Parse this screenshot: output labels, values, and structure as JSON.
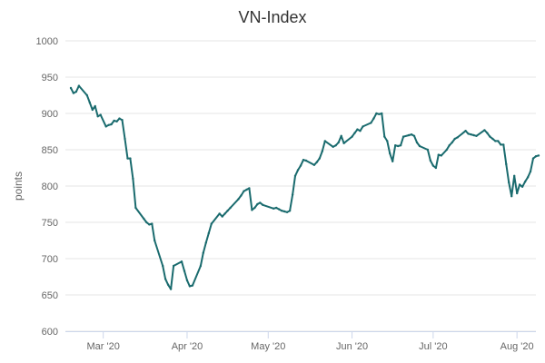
{
  "chart_data": {
    "type": "line",
    "title": "VN-Index",
    "xlabel": "",
    "ylabel": "points",
    "ylim": [
      600,
      1000
    ],
    "yticks": [
      600,
      650,
      700,
      750,
      800,
      850,
      900,
      950,
      1000
    ],
    "xticks": [
      {
        "date": "2020-03-01",
        "label": "Mar '20"
      },
      {
        "date": "2020-04-01",
        "label": "Apr '20"
      },
      {
        "date": "2020-05-01",
        "label": "May '20"
      },
      {
        "date": "2020-06-01",
        "label": "Jun '20"
      },
      {
        "date": "2020-07-01",
        "label": "Jul '20"
      },
      {
        "date": "2020-08-01",
        "label": "Aug '20"
      }
    ],
    "xlim": [
      "2020-02-16",
      "2020-08-08"
    ],
    "grid": true,
    "line_color": "#1a6b6e",
    "series": [
      {
        "name": "",
        "points": [
          [
            "2020-02-18",
            935
          ],
          [
            "2020-02-19",
            928
          ],
          [
            "2020-02-20",
            930
          ],
          [
            "2020-02-21",
            938
          ],
          [
            "2020-02-24",
            925
          ],
          [
            "2020-02-25",
            915
          ],
          [
            "2020-02-26",
            905
          ],
          [
            "2020-02-27",
            910
          ],
          [
            "2020-02-28",
            896
          ],
          [
            "2020-02-29",
            898
          ],
          [
            "2020-03-02",
            882
          ],
          [
            "2020-03-03",
            884
          ],
          [
            "2020-03-04",
            885
          ],
          [
            "2020-03-05",
            890
          ],
          [
            "2020-03-06",
            889
          ],
          [
            "2020-03-07",
            893
          ],
          [
            "2020-03-08",
            891
          ],
          [
            "2020-03-09",
            865
          ],
          [
            "2020-03-10",
            838
          ],
          [
            "2020-03-11",
            838
          ],
          [
            "2020-03-12",
            810
          ],
          [
            "2020-03-13",
            770
          ],
          [
            "2020-03-16",
            755
          ],
          [
            "2020-03-17",
            750
          ],
          [
            "2020-03-18",
            747
          ],
          [
            "2020-03-19",
            748
          ],
          [
            "2020-03-20",
            725
          ],
          [
            "2020-03-23",
            690
          ],
          [
            "2020-03-24",
            672
          ],
          [
            "2020-03-25",
            664
          ],
          [
            "2020-03-26",
            658
          ],
          [
            "2020-03-27",
            690
          ],
          [
            "2020-03-30",
            696
          ],
          [
            "2020-03-31",
            683
          ],
          [
            "2020-04-01",
            670
          ],
          [
            "2020-04-02",
            662
          ],
          [
            "2020-04-03",
            663
          ],
          [
            "2020-04-06",
            690
          ],
          [
            "2020-04-07",
            708
          ],
          [
            "2020-04-08",
            722
          ],
          [
            "2020-04-09",
            735
          ],
          [
            "2020-04-10",
            748
          ],
          [
            "2020-04-13",
            762
          ],
          [
            "2020-04-14",
            758
          ],
          [
            "2020-04-15",
            762
          ],
          [
            "2020-04-16",
            766
          ],
          [
            "2020-04-17",
            770
          ],
          [
            "2020-04-20",
            782
          ],
          [
            "2020-04-21",
            787
          ],
          [
            "2020-04-22",
            793
          ],
          [
            "2020-04-23",
            795
          ],
          [
            "2020-04-24",
            797
          ],
          [
            "2020-04-25",
            767
          ],
          [
            "2020-04-26",
            770
          ],
          [
            "2020-04-27",
            775
          ],
          [
            "2020-04-28",
            777
          ],
          [
            "2020-04-29",
            774
          ],
          [
            "2020-05-03",
            769
          ],
          [
            "2020-05-04",
            770
          ],
          [
            "2020-05-05",
            768
          ],
          [
            "2020-05-06",
            766
          ],
          [
            "2020-05-07",
            765
          ],
          [
            "2020-05-08",
            764
          ],
          [
            "2020-05-09",
            766
          ],
          [
            "2020-05-10",
            788
          ],
          [
            "2020-05-11",
            814
          ],
          [
            "2020-05-12",
            822
          ],
          [
            "2020-05-13",
            828
          ],
          [
            "2020-05-14",
            836
          ],
          [
            "2020-05-15",
            835
          ],
          [
            "2020-05-18",
            829
          ],
          [
            "2020-05-19",
            833
          ],
          [
            "2020-05-20",
            838
          ],
          [
            "2020-05-21",
            848
          ],
          [
            "2020-05-22",
            862
          ],
          [
            "2020-05-25",
            854
          ],
          [
            "2020-05-26",
            856
          ],
          [
            "2020-05-27",
            860
          ],
          [
            "2020-05-28",
            869
          ],
          [
            "2020-05-29",
            859
          ],
          [
            "2020-06-01",
            868
          ],
          [
            "2020-06-02",
            873
          ],
          [
            "2020-06-03",
            878
          ],
          [
            "2020-06-04",
            876
          ],
          [
            "2020-06-05",
            882
          ],
          [
            "2020-06-08",
            887
          ],
          [
            "2020-06-09",
            893
          ],
          [
            "2020-06-10",
            900
          ],
          [
            "2020-06-11",
            899
          ],
          [
            "2020-06-12",
            900
          ],
          [
            "2020-06-13",
            868
          ],
          [
            "2020-06-14",
            862
          ],
          [
            "2020-06-15",
            845
          ],
          [
            "2020-06-16",
            834
          ],
          [
            "2020-06-17",
            856
          ],
          [
            "2020-06-18",
            855
          ],
          [
            "2020-06-19",
            856
          ],
          [
            "2020-06-20",
            868
          ],
          [
            "2020-06-22",
            870
          ],
          [
            "2020-06-23",
            871
          ],
          [
            "2020-06-24",
            869
          ],
          [
            "2020-06-25",
            860
          ],
          [
            "2020-06-26",
            855
          ],
          [
            "2020-06-29",
            850
          ],
          [
            "2020-06-30",
            835
          ],
          [
            "2020-07-01",
            828
          ],
          [
            "2020-07-02",
            825
          ],
          [
            "2020-07-03",
            843
          ],
          [
            "2020-07-04",
            842
          ],
          [
            "2020-07-06",
            850
          ],
          [
            "2020-07-07",
            856
          ],
          [
            "2020-07-08",
            860
          ],
          [
            "2020-07-09",
            865
          ],
          [
            "2020-07-10",
            867
          ],
          [
            "2020-07-13",
            876
          ],
          [
            "2020-07-14",
            872
          ],
          [
            "2020-07-15",
            871
          ],
          [
            "2020-07-16",
            870
          ],
          [
            "2020-07-17",
            869
          ],
          [
            "2020-07-20",
            877
          ],
          [
            "2020-07-21",
            873
          ],
          [
            "2020-07-22",
            868
          ],
          [
            "2020-07-23",
            865
          ],
          [
            "2020-07-24",
            862
          ],
          [
            "2020-07-25",
            862
          ],
          [
            "2020-07-26",
            857
          ],
          [
            "2020-07-27",
            857
          ],
          [
            "2020-07-28",
            830
          ],
          [
            "2020-07-29",
            805
          ],
          [
            "2020-07-30",
            786
          ],
          [
            "2020-07-31",
            814
          ],
          [
            "2020-08-01",
            790
          ],
          [
            "2020-08-02",
            802
          ],
          [
            "2020-08-03",
            799
          ],
          [
            "2020-08-04",
            806
          ],
          [
            "2020-08-05",
            812
          ],
          [
            "2020-08-06",
            820
          ],
          [
            "2020-08-07",
            838
          ],
          [
            "2020-08-08",
            841
          ],
          [
            "2020-08-09",
            842
          ]
        ]
      }
    ]
  }
}
